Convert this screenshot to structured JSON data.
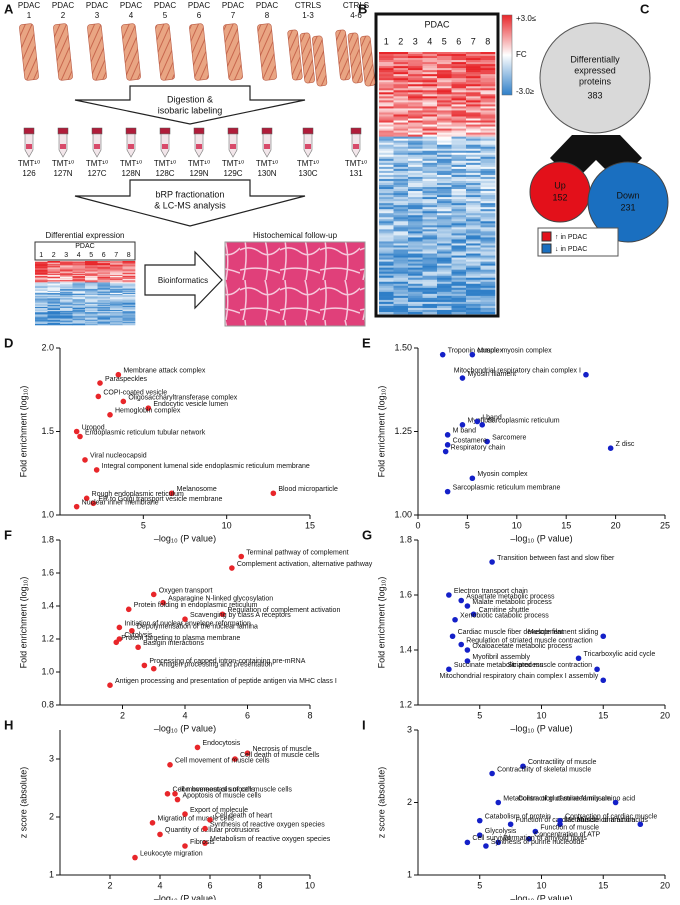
{
  "panel_a": {
    "label": "A",
    "group": "PDAC",
    "numbers": [
      "1",
      "2",
      "3",
      "4",
      "5",
      "6",
      "7",
      "8"
    ],
    "ctrl_groups": [
      {
        "name": "CTRLS",
        "range": "1-3"
      },
      {
        "name": "CTRLS",
        "range": "4-6"
      }
    ],
    "step1": [
      "Digestion &",
      "isobaric labeling"
    ],
    "tmt_prefix": "TMT¹⁰",
    "tmt_channels": [
      "126",
      "127N",
      "127C",
      "128N",
      "128C",
      "129N",
      "129C",
      "130N",
      "130C",
      "131"
    ],
    "step2": [
      "bRP fractionation",
      "& LC-MS analysis"
    ],
    "diff_title": "Differential expression",
    "bioinformatics": "Bioinformatics",
    "histo": "Histochemical follow-up"
  },
  "panel_b": {
    "label": "B",
    "group": "PDAC",
    "numbers": [
      "1",
      "2",
      "3",
      "4",
      "5",
      "6",
      "7",
      "8"
    ],
    "scale_top": "+3.0≤",
    "scale_mid": "FC",
    "scale_bottom": "-3.0≥"
  },
  "panel_c": {
    "label": "C",
    "title": [
      "Differentially",
      "expressed",
      "proteins"
    ],
    "total": "383",
    "up": "Up",
    "up_count": "152",
    "down": "Down",
    "down_count": "231",
    "legend": [
      "↑ in PDAC",
      "↓ in PDAC"
    ]
  },
  "chart_data": [
    {
      "type": "scatter",
      "panel": "D",
      "color": "#e8262a",
      "xlabel": "–log₁₀ (P value)",
      "ylabel": "Fold enrichment (log₁₀)",
      "xlim": [
        0,
        15
      ],
      "xticks": [
        5,
        10,
        15
      ],
      "ylim": [
        1.0,
        2.0
      ],
      "yticks": [
        {
          "value": 1,
          "label": "1.0"
        },
        1.5,
        {
          "value": 2,
          "label": "2.0"
        }
      ],
      "point_labels": [
        "Membrane attack complex",
        "Paraspeckles",
        "COPI-coated vesicle",
        "Oligosaccharyltransferase complex",
        "Endocytic vesicle lumen",
        "Hemoglobin complex",
        "Uropod",
        "Endoplasmic reticulum tubular network",
        "Viral nucleocapsid",
        "Integral component lumenal side endoplasmic reticulum membrane",
        "Melanosome",
        "Blood microparticle",
        "Rough endoplasmic reticulum",
        "ER to Golgi transport vesicle membrane",
        "Nuclear inner membrane"
      ],
      "x": [
        3.5,
        2.4,
        2.3,
        3.8,
        5.3,
        3.0,
        1.0,
        1.2,
        1.5,
        2.2,
        6.7,
        12.8,
        1.6,
        2.0,
        1.0
      ],
      "values": [
        1.84,
        1.79,
        1.71,
        1.68,
        1.64,
        1.6,
        1.5,
        1.47,
        1.33,
        1.27,
        1.13,
        1.13,
        1.1,
        1.07,
        1.05
      ]
    },
    {
      "type": "scatter",
      "panel": "E",
      "color": "#1420c8",
      "xlabel": "–log₁₀ (P value)",
      "ylabel": "Fold enrichment (log₁₀)",
      "xlim": [
        0,
        25
      ],
      "xticks": [
        0,
        5,
        10,
        15,
        20,
        25
      ],
      "ylim": [
        1.0,
        1.5
      ],
      "yticks": [
        {
          "value": 1,
          "label": "1.00"
        },
        1.25,
        {
          "value": 1.5,
          "label": "1.50"
        }
      ],
      "point_labels": [
        "Troponin complex",
        "Muscle myosin complex",
        "Myosin filament",
        "Mitochondrial respiratory chain complex I",
        "Myofibril",
        "I band",
        "Sarcoplasmic reticulum",
        "M band",
        "Sarcomere",
        "Costamere",
        "Respiratory chain",
        "Z disc",
        "Myosin complex",
        "Sarcoplasmic reticulum membrane"
      ],
      "x": [
        2.5,
        5.5,
        4.5,
        17,
        4.5,
        6,
        6.5,
        3,
        7,
        3,
        2.8,
        19.5,
        5.5,
        3
      ],
      "values": [
        1.48,
        1.48,
        1.41,
        1.42,
        1.27,
        1.28,
        1.27,
        1.24,
        1.22,
        1.21,
        1.19,
        1.2,
        1.11,
        1.07
      ]
    },
    {
      "type": "scatter",
      "panel": "F",
      "color": "#e8262a",
      "xlabel": "–log₁₀ (P value)",
      "ylabel": "Fold enrichment (log₁₀)",
      "xlim": [
        0,
        8
      ],
      "xticks": [
        2,
        4,
        6,
        8
      ],
      "ylim": [
        0.8,
        1.8
      ],
      "yticks": [
        0.8,
        {
          "value": 1,
          "label": "1.0"
        },
        1.2,
        1.4,
        1.6,
        1.8
      ],
      "point_labels": [
        "Terminal pathway of complement",
        "Complement activation, alternative pathway",
        "Oxygen transport",
        "Asparagine N-linked glycosylation",
        "Regulation of complement activation",
        "Protein folding in endoplasmic reticulum",
        "Scavenging by class A receptors",
        "Initiation of nuclear envelope reformation",
        "Depolymerisation of the nuclear lamina",
        "Cytolysis",
        "Protein targeting to plasma membrane",
        "Basigin interactions",
        "Processing of capped intron-containing pre-mRNA",
        "Antigen processing and presentation",
        "Antigen processing and presentation of peptide antigen via MHC class I"
      ],
      "x": [
        5.8,
        5.5,
        3.0,
        3.3,
        5.2,
        2.2,
        4.0,
        1.9,
        2.3,
        1.9,
        1.8,
        2.5,
        2.7,
        3.0,
        1.6
      ],
      "values": [
        1.7,
        1.63,
        1.47,
        1.42,
        1.35,
        1.38,
        1.32,
        1.27,
        1.25,
        1.2,
        1.18,
        1.15,
        1.04,
        1.02,
        0.92
      ]
    },
    {
      "type": "scatter",
      "panel": "G",
      "color": "#1420c8",
      "xlabel": "–log₁₀ (P value)",
      "ylabel": "Fold enrichment (log₁₀)",
      "xlim": [
        0,
        20
      ],
      "xticks": [
        5,
        10,
        15,
        20
      ],
      "ylim": [
        1.2,
        1.8
      ],
      "yticks": [
        1.2,
        1.4,
        1.6,
        1.8
      ],
      "point_labels": [
        "Transition between fast and slow fiber",
        "Electron transport chain",
        "Aspartate metabolic process",
        "Malate metabolic process",
        "Carnitine shuttle",
        "Xenobiotic catabolic process",
        "Cardiac muscle fiber development",
        "Regulation of striated muscle contraction",
        "Muscle filament sliding",
        "Oxaloacetate metabolic process",
        "Tricarboxylic acid cycle",
        "Myofibril assembly",
        "Striated muscle contraction",
        "Succinate metabolic process",
        "Mitochondrial respiratory chain complex I assembly"
      ],
      "x": [
        6,
        2.5,
        3.5,
        4,
        4.5,
        3,
        2.8,
        3.5,
        15,
        4,
        13,
        4,
        14.5,
        2.5,
        15
      ],
      "values": [
        1.72,
        1.6,
        1.58,
        1.56,
        1.53,
        1.51,
        1.45,
        1.42,
        1.45,
        1.4,
        1.37,
        1.36,
        1.33,
        1.33,
        1.29
      ]
    },
    {
      "type": "scatter",
      "panel": "H",
      "color": "#e8262a",
      "xlabel": "–log₁₀ (P value)",
      "ylabel": "z score (absolute)",
      "xlim": [
        0,
        10
      ],
      "xticks": [
        2,
        4,
        6,
        8,
        10
      ],
      "ylim": [
        1,
        3.5
      ],
      "yticks": [
        1,
        2,
        3
      ],
      "point_labels": [
        "Endocytosis",
        "Necrosis of muscle",
        "Cell death of muscle cells",
        "Cell movement of muscle cells",
        "Cell movement of smooth muscle cells",
        "Ion homeostasis of cells",
        "Apoptosis of muscle cells",
        "Export of molecule",
        "Migration of muscle cells",
        "Cell death of heart",
        "Quantity of cellular protrusions",
        "Synthesis of reactive oxygen species",
        "Metabolism of reactive oxygen species",
        "Fibrosis",
        "Leukocyte migration"
      ],
      "x": [
        5.5,
        7.5,
        7,
        4.4,
        4.3,
        4.6,
        4.7,
        5,
        3.7,
        6,
        4.0,
        5.8,
        5.8,
        5,
        3
      ],
      "values": [
        3.2,
        3.1,
        3.0,
        2.9,
        2.4,
        2.4,
        2.3,
        2.05,
        1.9,
        1.95,
        1.7,
        1.8,
        1.55,
        1.5,
        1.3
      ]
    },
    {
      "type": "scatter",
      "panel": "I",
      "color": "#1420c8",
      "xlabel": "–log₁₀ (P value)",
      "ylabel": "z score (absolute)",
      "xlim": [
        0,
        20
      ],
      "xticks": [
        5,
        10,
        15,
        20
      ],
      "ylim": [
        1,
        3
      ],
      "yticks": [
        1,
        2,
        3
      ],
      "point_labels": [
        "Contractility of muscle",
        "Contractility of skeletal muscle",
        "Metabolism of glutamine family amino acid",
        "Catabolism of protein",
        "Function of cardiac muscle",
        "Contraction of striated muscle",
        "Contraction of cardiac muscle",
        "Metabolism of amino acids",
        "Glycolysis",
        "Function of muscle",
        "Concentration of ATP",
        "Cell survival",
        "Formation of amyloid fibrils",
        "Synthesis of purine nucleotide",
        "Muscle contraction"
      ],
      "x": [
        8.5,
        6,
        6.5,
        5,
        7.5,
        16,
        11.5,
        11.5,
        5,
        9.5,
        9,
        4,
        6.5,
        5.5,
        18
      ],
      "values": [
        2.5,
        2.4,
        2.0,
        1.75,
        1.7,
        2.0,
        1.75,
        1.7,
        1.55,
        1.6,
        1.5,
        1.45,
        1.45,
        1.4,
        1.7
      ]
    }
  ]
}
